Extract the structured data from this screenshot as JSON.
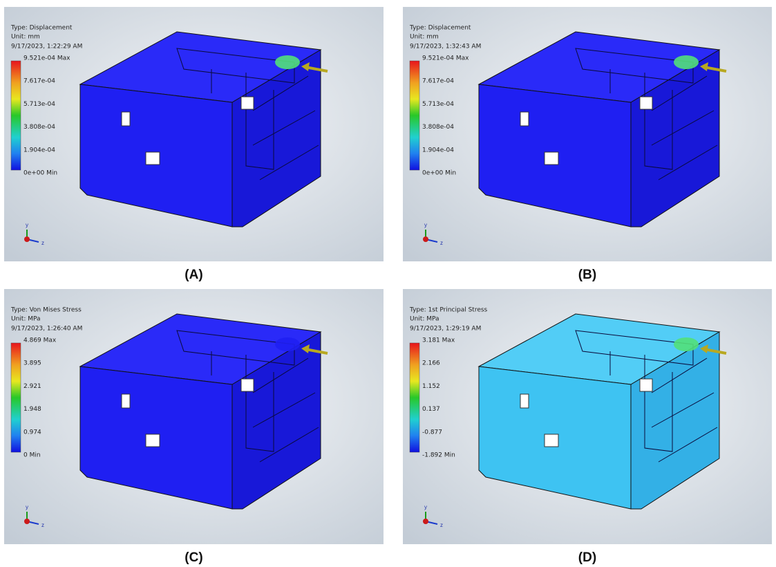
{
  "panels": [
    {
      "type_line": "Type: Displacement",
      "unit_line": "Unit: mm",
      "date_line": "9/17/2023, 1:22:29 AM",
      "legend_labels": [
        "9.521e-04 Max",
        "7.617e-04",
        "5.713e-04",
        "3.808e-04",
        "1.904e-04",
        "0e+00 Min"
      ],
      "caption": "(A)"
    },
    {
      "type_line": "Type: Displacement",
      "unit_line": "Unit: mm",
      "date_line": "9/17/2023, 1:32:43 AM",
      "legend_labels": [
        "9.521e-04 Max",
        "7.617e-04",
        "5.713e-04",
        "3.808e-04",
        "1.904e-04",
        "0e+00 Min"
      ],
      "caption": "(B)"
    },
    {
      "type_line": "Type: Von Mises Stress",
      "unit_line": "Unit: MPa",
      "date_line": "9/17/2023, 1:26:40 AM",
      "legend_labels": [
        "4.869 Max",
        "3.895",
        "2.921",
        "1.948",
        "0.974",
        "0 Min"
      ],
      "caption": "(C)"
    },
    {
      "type_line": "Type: 1st Principal Stress",
      "unit_line": "Unit: MPa",
      "date_line": "9/17/2023, 1:29:19 AM",
      "legend_labels": [
        "3.181 Max",
        "2.166",
        "1.152",
        "0.137",
        "-0.877",
        "-1.892 Min"
      ],
      "caption": "(D)"
    }
  ],
  "triad_labels": [
    "y",
    "z"
  ]
}
